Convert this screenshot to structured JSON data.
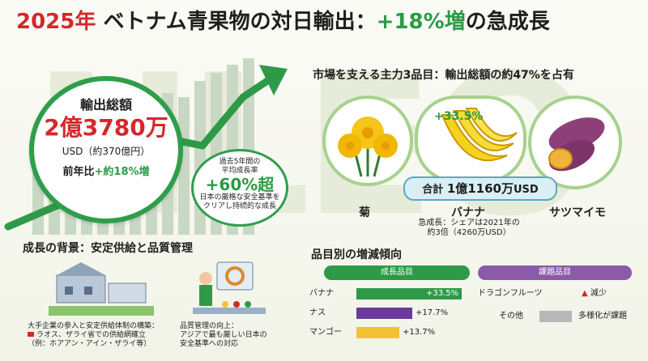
{
  "title": {
    "year": "2025年",
    "middle": "ベトナム青果物の対日輸出：",
    "growth": "+18%増",
    "end": "の急成長"
  },
  "total": {
    "label": "輸出総額",
    "amount": "2億3780万",
    "usd": "USD（約370億円）",
    "yoy_prefix": "前年比",
    "yoy_value": "+約18%増"
  },
  "cagr": {
    "line1": "過去5年間の",
    "line2": "平均成長率",
    "value": "+60%超",
    "line3": "日本の厳格な安全基準を",
    "line4": "クリアし持続的な成長"
  },
  "products_section": {
    "title": "市場を支える主力3品目：輸出総額の約47%を占有",
    "banana_growth": "+33.5%",
    "banner_prefix": "合計",
    "banner_amount": "1億1160万",
    "banner_suffix": "USD",
    "items": [
      {
        "label": "菊"
      },
      {
        "label": "バナナ"
      },
      {
        "label": "サツマイモ"
      }
    ],
    "banana_note_1": "急成長：シェアは2021年の",
    "banana_note_2": "約3倍（4260万USD）"
  },
  "background_section": {
    "title": "成長の背景：安定供給と品質管理",
    "left_1": "大手企業の参入と安定供給体制の構築：",
    "left_2": "ラオス、ザライ省での供給網確立",
    "left_3": "（例：ホアアン・アイン・ザライ等）",
    "right_1": "品質管理の向上：",
    "right_2": "アジアで最も厳しい日本の",
    "right_3": "安全基準への対応"
  },
  "trends_section": {
    "title": "品目別の増減傾向",
    "growth_header": "成長品目",
    "issue_header": "課題品目",
    "growth_items": [
      {
        "label": "バナナ",
        "value": "+33.5%",
        "pct": 33.5,
        "color": "#2e9a48"
      },
      {
        "label": "ナス",
        "value": "+17.7%",
        "pct": 17.7,
        "color": "#6b3a9a"
      },
      {
        "label": "マンゴー",
        "value": "+13.7%",
        "pct": 13.7,
        "color": "#f2c232"
      }
    ],
    "issue_items": [
      {
        "label": "ドラゴンフルーツ",
        "value": "減少"
      },
      {
        "label": "その他",
        "value": "多様化が課題"
      }
    ]
  }
}
